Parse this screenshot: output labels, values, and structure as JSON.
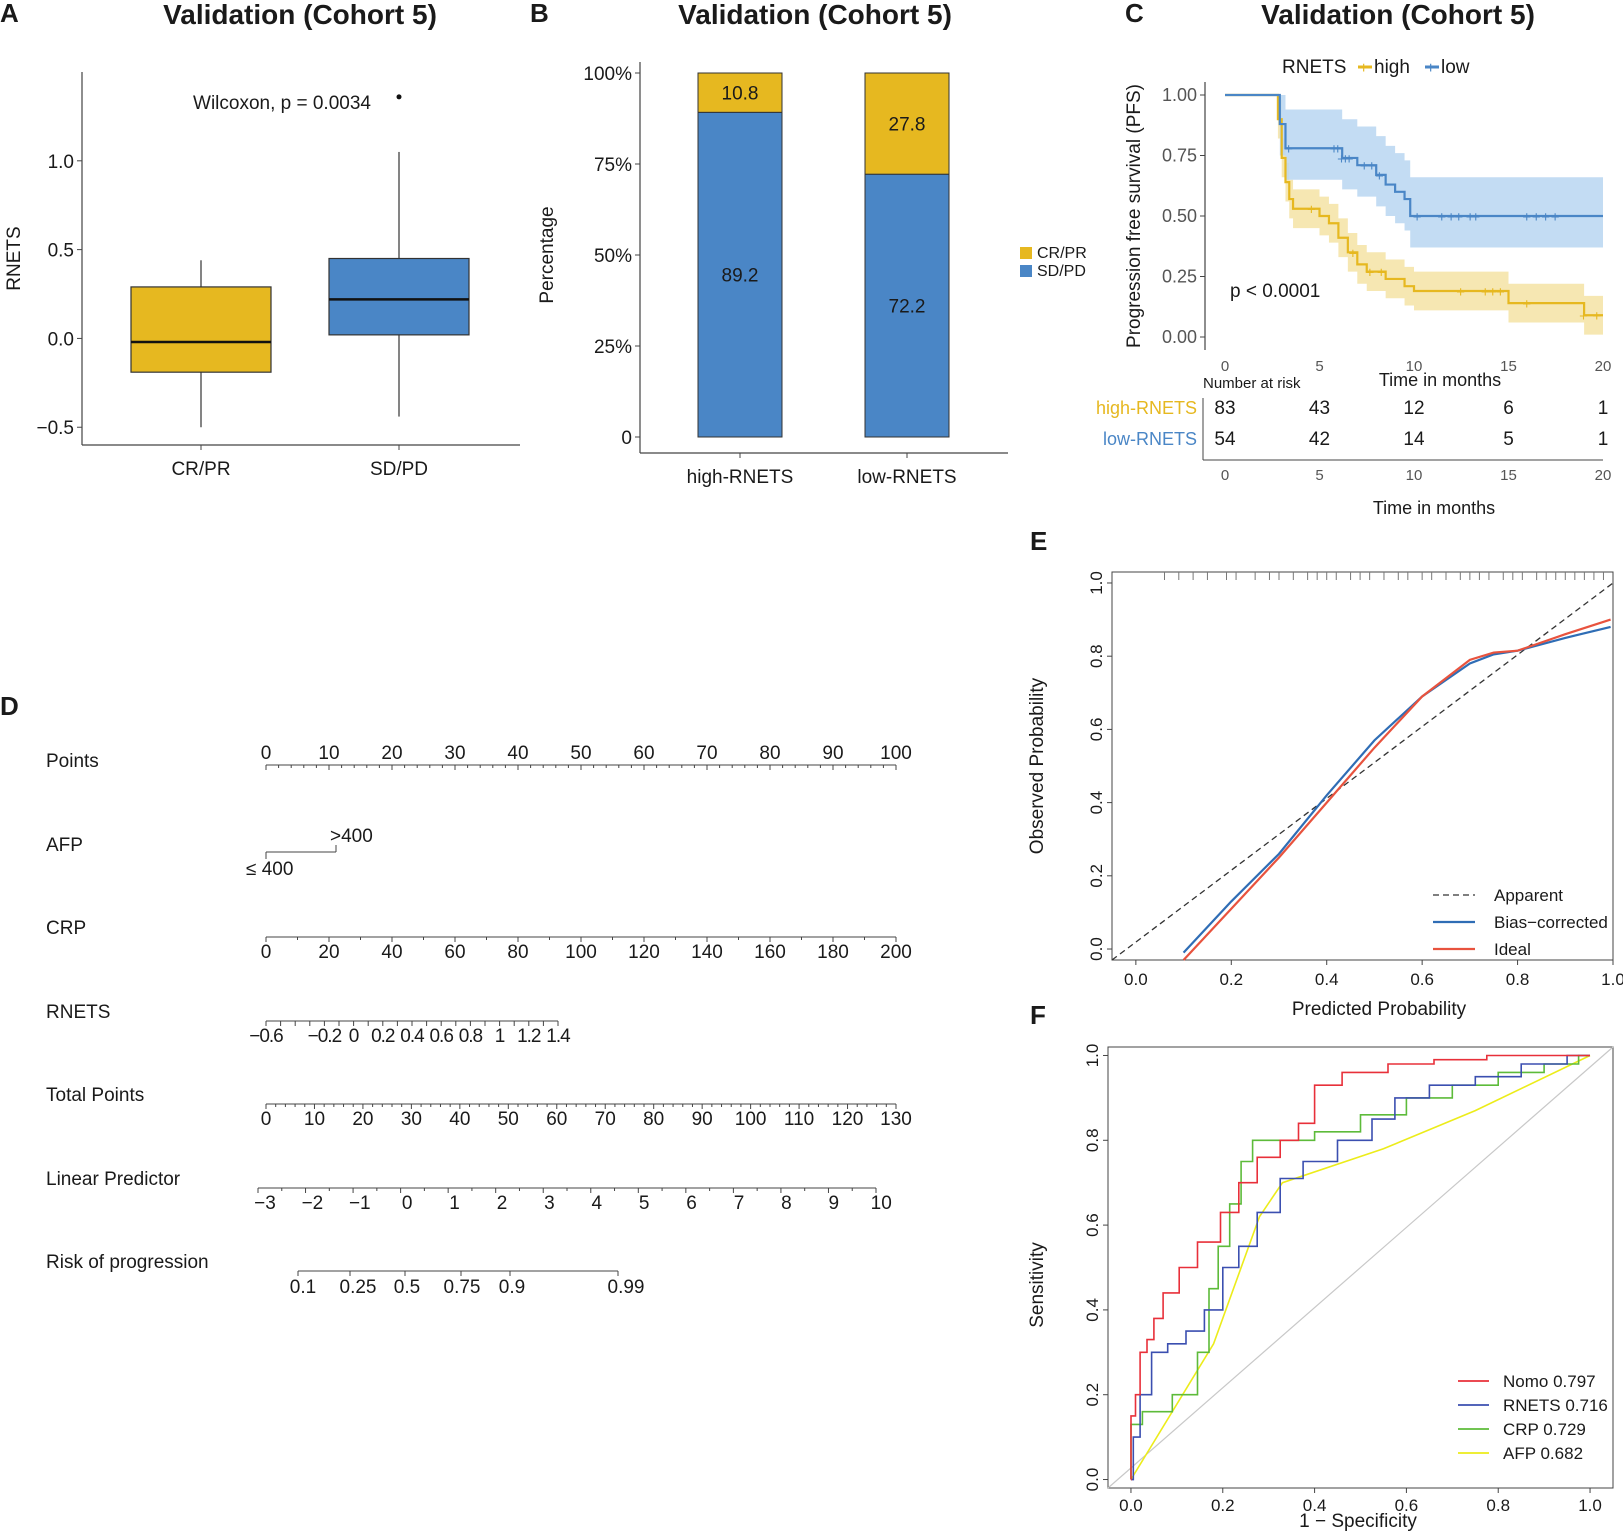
{
  "figure": {
    "panel_letters": [
      "A",
      "B",
      "C",
      "D",
      "E",
      "F"
    ]
  },
  "chart_data": [
    {
      "id": "A",
      "type": "box",
      "title": "Validation (Cohort 5)",
      "xlabel": "",
      "ylabel": "RNETS",
      "ylim": [
        -0.6,
        1.5
      ],
      "yticks": [
        -0.5,
        0.0,
        0.5,
        1.0
      ],
      "ytick_labels": [
        "−0.5",
        "0.0",
        "0.5",
        "1.0"
      ],
      "annotation": "Wilcoxon, p = 0.0034",
      "colors": {
        "CR/PR": "#e6b820",
        "SD/PD": "#4a86c6"
      },
      "groups": [
        {
          "label": "CR/PR",
          "q1": -0.19,
          "median": -0.02,
          "q3": 0.29,
          "whisker_low": -0.5,
          "whisker_high": 0.44,
          "outliers": []
        },
        {
          "label": "SD/PD",
          "q1": 0.02,
          "median": 0.22,
          "q3": 0.45,
          "whisker_low": -0.44,
          "whisker_high": 1.05,
          "outliers": [
            1.36
          ]
        }
      ]
    },
    {
      "id": "B",
      "type": "bar",
      "stacked": true,
      "title": "Validation (Cohort 5)",
      "ylabel": "Percentage",
      "ylim": [
        0,
        100
      ],
      "ytick_labels": [
        "0",
        "25%",
        "50%",
        "75%",
        "100%"
      ],
      "categories": [
        "high-RNETS",
        "low-RNETS"
      ],
      "series": [
        {
          "name": "SD/PD",
          "color": "#4a86c6",
          "values": [
            89.2,
            72.2
          ],
          "labels": [
            "89.2",
            "72.2"
          ]
        },
        {
          "name": "CR/PR",
          "color": "#e6b820",
          "values": [
            10.8,
            27.8
          ],
          "labels": [
            "10.8",
            "27.8"
          ]
        }
      ],
      "legend": [
        "CR/PR",
        "SD/PD"
      ]
    },
    {
      "id": "C",
      "type": "line",
      "subtype": "kaplan-meier",
      "title": "Validation (Cohort 5)",
      "xlabel": "Time in months",
      "ylabel": "Progression free survival (PFS)",
      "xlim": [
        0,
        20
      ],
      "ylim": [
        0,
        1
      ],
      "xticks": [
        0,
        5,
        10,
        15,
        20
      ],
      "yticks": [
        "0.00",
        "0.25",
        "0.50",
        "0.75",
        "1.00"
      ],
      "legend_title": "RNETS",
      "legend": [
        "high",
        "low"
      ],
      "annotation": "p < 0.0001",
      "series": [
        {
          "name": "high",
          "color": "#e6b820",
          "band": "#f5e3a4",
          "x": [
            0,
            2.6,
            2.8,
            3.0,
            3.2,
            3.4,
            3.6,
            4.5,
            5.0,
            5.5,
            6.0,
            6.5,
            7.0,
            7.5,
            8.5,
            9.5,
            10.0,
            15.0,
            19.0,
            19.5,
            20.0
          ],
          "y": [
            1.0,
            1.0,
            0.9,
            0.74,
            0.64,
            0.57,
            0.53,
            0.53,
            0.5,
            0.47,
            0.41,
            0.35,
            0.3,
            0.27,
            0.24,
            0.21,
            0.19,
            0.14,
            0.09,
            0.09,
            0.09
          ]
        },
        {
          "name": "low",
          "color": "#4a86c6",
          "band": "#b9d6f1",
          "x": [
            0,
            2.6,
            2.9,
            3.2,
            4.0,
            5.5,
            6.2,
            7.0,
            8.0,
            8.5,
            9.0,
            9.5,
            9.8,
            20.0
          ],
          "y": [
            1.0,
            1.0,
            0.88,
            0.78,
            0.78,
            0.78,
            0.74,
            0.71,
            0.67,
            0.63,
            0.6,
            0.57,
            0.5,
            0.5
          ]
        }
      ],
      "risk_table": {
        "header": "Number at risk",
        "xlabel": "Time in months",
        "rows": [
          {
            "label": "high-RNETS",
            "color": "#e6b820",
            "values": [
              "83",
              "43",
              "12",
              "6",
              "1"
            ]
          },
          {
            "label": "low-RNETS",
            "color": "#4a86c6",
            "values": [
              "54",
              "42",
              "14",
              "5",
              "1"
            ]
          }
        ]
      }
    },
    {
      "id": "D",
      "type": "nomogram",
      "rows": [
        {
          "label": "Points",
          "ticks": [
            "0",
            "10",
            "20",
            "30",
            "40",
            "50",
            "60",
            "70",
            "80",
            "90",
            "100"
          ]
        },
        {
          "label": "AFP",
          "ticks": [
            "≤ 400",
            ">400"
          ]
        },
        {
          "label": "CRP",
          "ticks": [
            "0",
            "20",
            "40",
            "60",
            "80",
            "100",
            "120",
            "140",
            "160",
            "180",
            "200"
          ]
        },
        {
          "label": "RNETS",
          "ticks": [
            "−0.6",
            "−0.2",
            "0",
            "0.2",
            "0.4",
            "0.6",
            "0.8",
            "1",
            "1.2",
            "1.4"
          ]
        },
        {
          "label": "Total Points",
          "ticks": [
            "0",
            "10",
            "20",
            "30",
            "40",
            "50",
            "60",
            "70",
            "80",
            "90",
            "100",
            "110",
            "120",
            "130"
          ]
        },
        {
          "label": "Linear Predictor",
          "ticks": [
            "−3",
            "−2",
            "−1",
            "0",
            "1",
            "2",
            "3",
            "4",
            "5",
            "6",
            "7",
            "8",
            "9",
            "10"
          ]
        },
        {
          "label": "Risk of progression",
          "ticks": [
            "0.1",
            "0.25",
            "0.5",
            "0.75",
            "0.9",
            "0.99"
          ]
        }
      ]
    },
    {
      "id": "E",
      "type": "line",
      "subtype": "calibration",
      "xlabel": "Predicted Probability",
      "ylabel": "Observed Probability",
      "xlim": [
        -0.05,
        1.0
      ],
      "ylim": [
        -0.03,
        1.03
      ],
      "xticks": [
        "0.0",
        "0.2",
        "0.4",
        "0.6",
        "0.8",
        "1.0"
      ],
      "yticks": [
        "0.0",
        "0.2",
        "0.4",
        "0.6",
        "0.8",
        "1.0"
      ],
      "series": [
        {
          "name": "Apparent",
          "color": "#333333",
          "dash": true,
          "x": [
            -0.05,
            1.0
          ],
          "y": [
            -0.03,
            1.0
          ]
        },
        {
          "name": "Bias−corrected",
          "color": "#2f6db5",
          "x": [
            0.1,
            0.2,
            0.3,
            0.4,
            0.5,
            0.6,
            0.7,
            0.75,
            0.8,
            0.9,
            0.995
          ],
          "y": [
            -0.01,
            0.13,
            0.26,
            0.42,
            0.57,
            0.69,
            0.78,
            0.805,
            0.815,
            0.85,
            0.88
          ]
        },
        {
          "name": "Ideal",
          "color": "#e8533e",
          "x": [
            0.1,
            0.2,
            0.3,
            0.4,
            0.5,
            0.6,
            0.7,
            0.75,
            0.8,
            0.9,
            0.995
          ],
          "y": [
            -0.03,
            0.11,
            0.25,
            0.4,
            0.55,
            0.69,
            0.79,
            0.81,
            0.815,
            0.86,
            0.9
          ]
        }
      ],
      "rug_x": [
        0.06,
        0.09,
        0.12,
        0.15,
        0.19,
        0.21,
        0.25,
        0.28,
        0.3,
        0.33,
        0.36,
        0.38,
        0.4,
        0.42,
        0.45,
        0.47,
        0.49,
        0.52,
        0.55,
        0.57,
        0.6,
        0.62,
        0.65,
        0.68,
        0.7,
        0.72,
        0.74,
        0.77,
        0.79,
        0.81,
        0.84,
        0.86,
        0.88,
        0.9,
        0.92,
        0.94,
        0.96,
        0.98
      ]
    },
    {
      "id": "F",
      "type": "line",
      "subtype": "roc",
      "xlabel": "1 − Specificity",
      "ylabel": "Sensitivity",
      "xlim": [
        -0.05,
        1.05
      ],
      "ylim": [
        -0.02,
        1.02
      ],
      "xticks": [
        "0.0",
        "0.2",
        "0.4",
        "0.6",
        "0.8",
        "1.0"
      ],
      "yticks": [
        "0.0",
        "0.2",
        "0.4",
        "0.6",
        "0.8",
        "1.0"
      ],
      "series": [
        {
          "name": "Nomo 0.797",
          "color": "#e8303a",
          "x": [
            0,
            0,
            0.02,
            0.02,
            0.05,
            0.05,
            0.09,
            0.12,
            0.17,
            0.22,
            0.25,
            0.3,
            0.35,
            0.38,
            0.42,
            0.5,
            0.62,
            0.7,
            0.85,
            1.0
          ],
          "y": [
            0,
            0.15,
            0.2,
            0.3,
            0.33,
            0.38,
            0.44,
            0.5,
            0.56,
            0.63,
            0.7,
            0.76,
            0.8,
            0.84,
            0.93,
            0.96,
            0.98,
            0.99,
            1.0,
            1.0
          ]
        },
        {
          "name": "RNETS 0.716",
          "color": "#3b4fb0",
          "x": [
            0,
            0.01,
            0.03,
            0.06,
            0.1,
            0.14,
            0.18,
            0.22,
            0.25,
            0.3,
            0.35,
            0.4,
            0.5,
            0.55,
            0.6,
            0.7,
            0.8,
            0.9,
            1.0
          ],
          "y": [
            0,
            0.1,
            0.2,
            0.3,
            0.32,
            0.35,
            0.4,
            0.5,
            0.55,
            0.63,
            0.71,
            0.75,
            0.8,
            0.85,
            0.9,
            0.93,
            0.95,
            0.98,
            1.0
          ]
        },
        {
          "name": "CRP 0.729",
          "color": "#5dbb3a",
          "x": [
            0,
            0,
            0.05,
            0.13,
            0.16,
            0.18,
            0.2,
            0.23,
            0.25,
            0.28,
            0.35,
            0.45,
            0.55,
            0.65,
            0.75,
            0.85,
            0.95,
            1.0
          ],
          "y": [
            0,
            0.13,
            0.16,
            0.2,
            0.3,
            0.45,
            0.55,
            0.65,
            0.75,
            0.8,
            0.8,
            0.82,
            0.86,
            0.9,
            0.93,
            0.96,
            0.98,
            1.0
          ]
        },
        {
          "name": "AFP 0.682",
          "color": "#ecec1a",
          "x": [
            0,
            0.18,
            0.28,
            0.33,
            0.55,
            0.75,
            1.0
          ],
          "y": [
            0,
            0.32,
            0.62,
            0.7,
            0.78,
            0.87,
            1.0
          ]
        }
      ]
    }
  ]
}
